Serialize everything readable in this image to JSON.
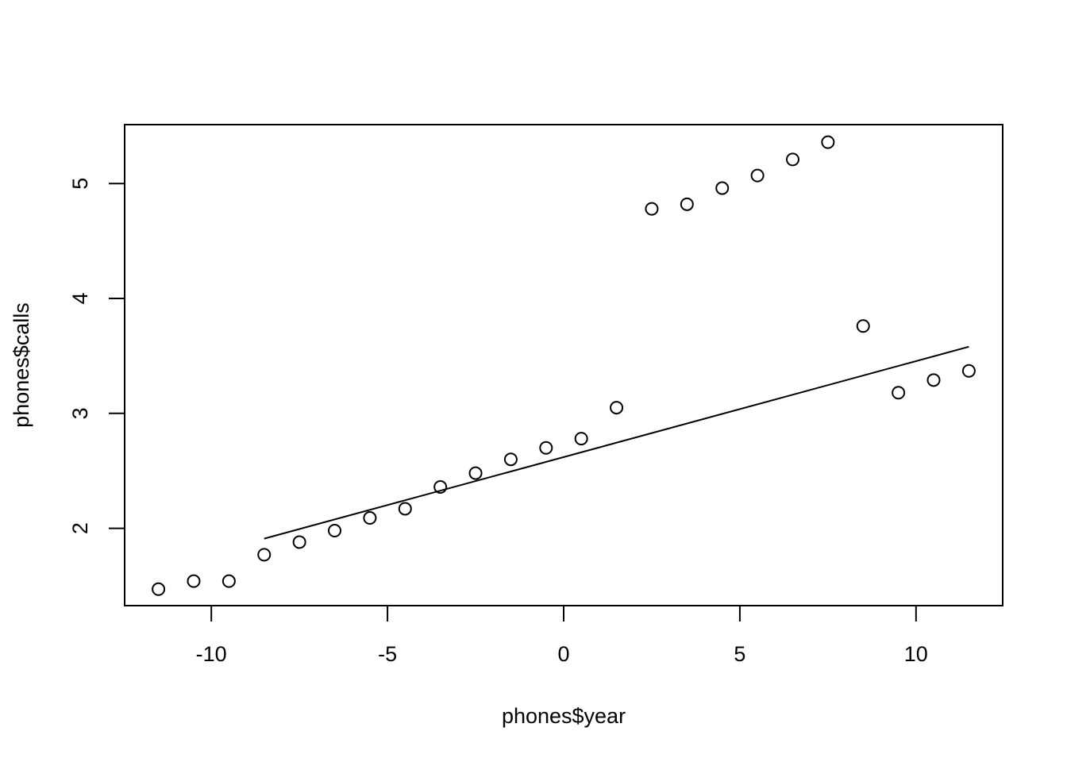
{
  "chart_data": {
    "type": "scatter",
    "title": "",
    "xlabel": "phones$year",
    "ylabel": "phones$calls",
    "xlim": [
      -12.46,
      12.46
    ],
    "ylim": [
      1.327,
      5.513
    ],
    "x_ticks": [
      -10,
      -5,
      0,
      5,
      10
    ],
    "x_tick_labels": [
      "-10",
      "-5",
      "0",
      "5",
      "10"
    ],
    "y_ticks": [
      2,
      3,
      4,
      5
    ],
    "y_tick_labels": [
      "2",
      "3",
      "4",
      "5"
    ],
    "grid": false,
    "series": [
      {
        "type": "scatter",
        "x": [
          -11.5,
          -10.5,
          -9.5,
          -8.5,
          -7.5,
          -6.5,
          -5.5,
          -4.5,
          -3.5,
          -2.5,
          -1.5,
          -0.5,
          0.5,
          1.5,
          2.5,
          3.5,
          4.5,
          5.5,
          6.5,
          7.5,
          8.5,
          9.5,
          10.5,
          11.5
        ],
        "y": [
          1.47,
          1.54,
          1.54,
          1.77,
          1.88,
          1.98,
          2.09,
          2.17,
          2.36,
          2.48,
          2.6,
          2.7,
          2.78,
          3.05,
          4.78,
          4.82,
          4.96,
          5.07,
          5.21,
          5.36,
          3.76,
          3.18,
          3.29,
          3.37
        ]
      },
      {
        "type": "line",
        "x": [
          -8.5,
          11.5
        ],
        "y": [
          1.91,
          3.58
        ]
      }
    ]
  }
}
